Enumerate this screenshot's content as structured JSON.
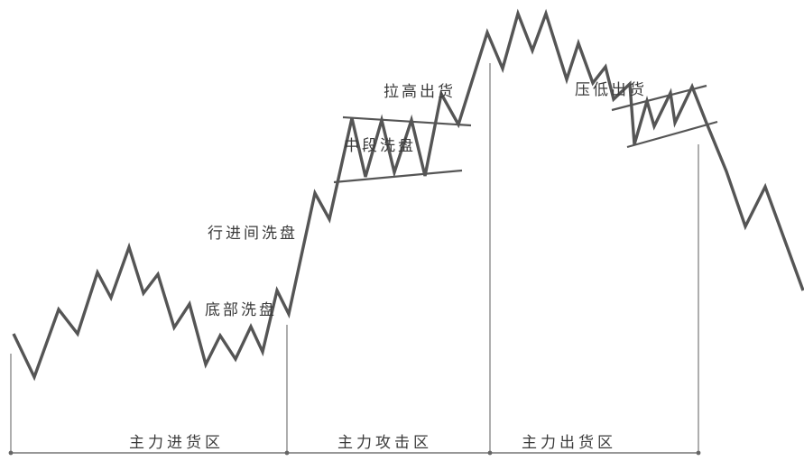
{
  "annotations": {
    "bottom_wash": "底部洗盘",
    "moving_wash": "行进间洗盘",
    "mid_wash": "中段洗盘",
    "pull_up_sell": "拉高出货",
    "press_low_sell": "压低出货"
  },
  "zones": [
    "主力进货区",
    "主力攻击区",
    "主力出货区"
  ],
  "colors": {
    "price_line": "#555555",
    "channel_line": "#555555",
    "axis_line": "#777777",
    "text": "#3a3a3a"
  }
}
